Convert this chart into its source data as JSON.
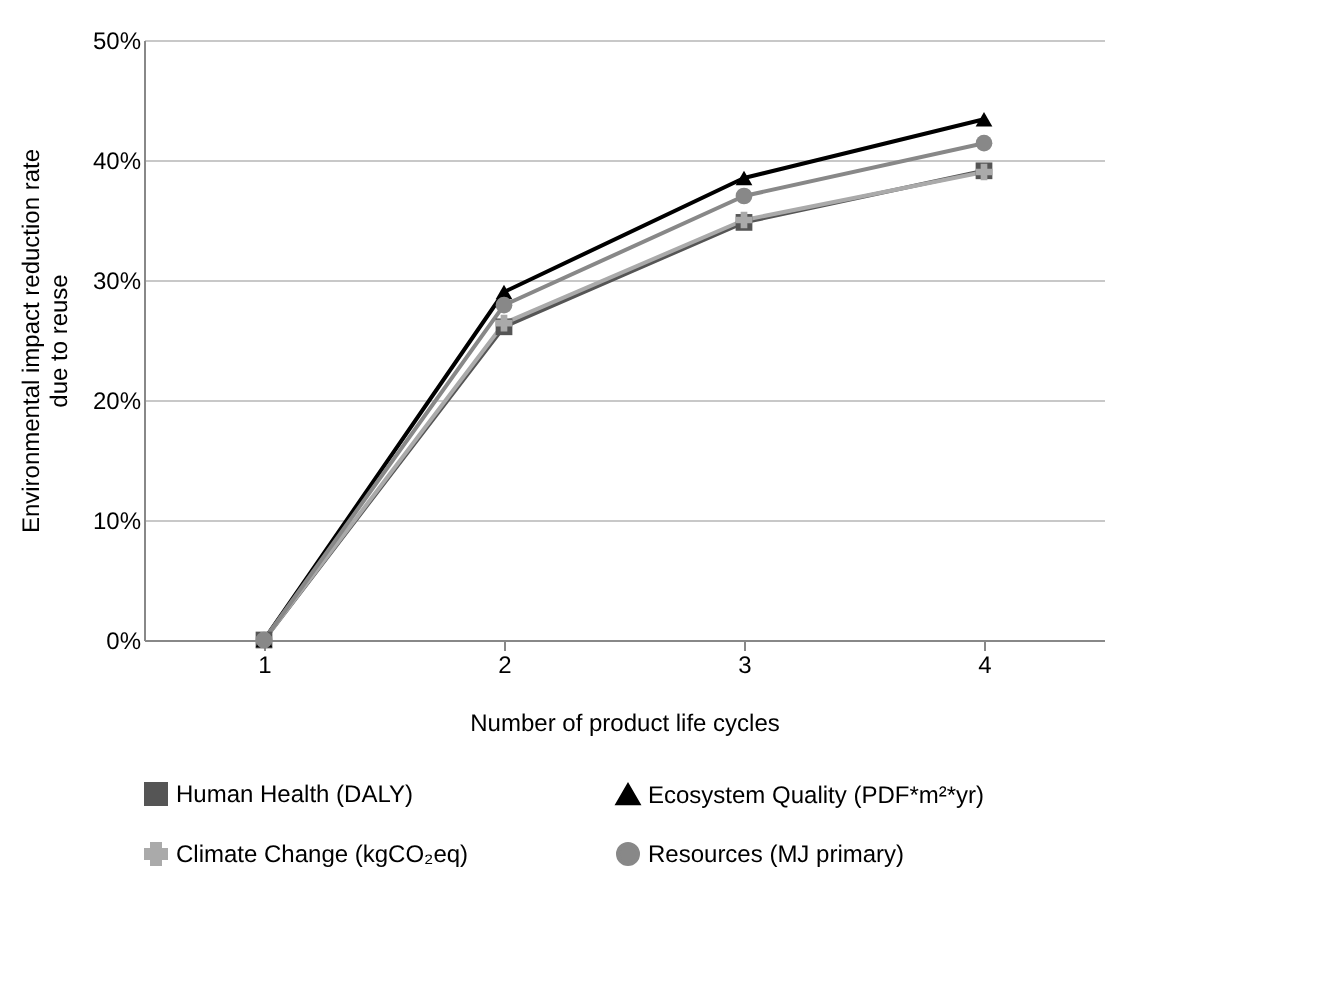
{
  "chart_data": {
    "type": "line",
    "xlabel": "Number of product life cycles",
    "ylabel": "Environmental impact reduction rate due to reuse",
    "categories": [
      "1",
      "2",
      "3",
      "4"
    ],
    "series": [
      {
        "name": "Human Health (DALY)",
        "color": "#555555",
        "marker": "square",
        "values": [
          0,
          26.1,
          34.8,
          39.1
        ]
      },
      {
        "name": "Ecosystem Quality (PDF*m²*yr)",
        "color": "#000000",
        "marker": "triangle",
        "values": [
          0,
          29.0,
          38.5,
          43.4
        ]
      },
      {
        "name": "Climate Change (kgCO₂eq)",
        "color": "#aaaaaa",
        "marker": "cross",
        "values": [
          0,
          26.4,
          35.0,
          39.0
        ]
      },
      {
        "name": "Resources (MJ primary)",
        "color": "#888888",
        "marker": "circle",
        "values": [
          0,
          27.9,
          37.0,
          41.4
        ]
      }
    ],
    "ylim": [
      0,
      50
    ],
    "yticks": [
      {
        "value": 0,
        "label": "0%"
      },
      {
        "value": 10,
        "label": "10%"
      },
      {
        "value": 20,
        "label": "20%"
      },
      {
        "value": 30,
        "label": "30%"
      },
      {
        "value": 40,
        "label": "40%"
      },
      {
        "value": 50,
        "label": "50%"
      }
    ],
    "grid": "y",
    "legend": "bottom",
    "line_style": "solid"
  }
}
